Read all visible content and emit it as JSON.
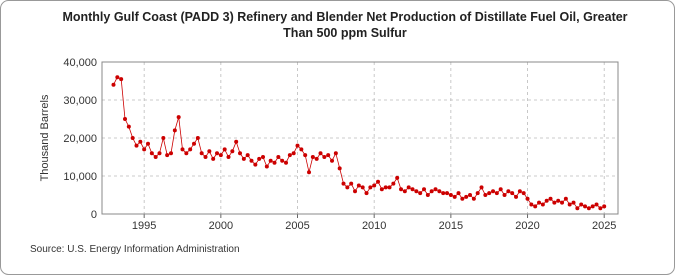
{
  "chart_data": {
    "type": "line",
    "title": "Monthly Gulf Coast (PADD 3) Refinery and Blender Net Production of Distillate Fuel Oil, Greater Than 500 ppm Sulfur",
    "y_label": "Thousand Barrels",
    "source": "Source: U.S. Energy Information Administration",
    "x": [
      1993,
      1993.25,
      1993.5,
      1993.75,
      1994,
      1994.25,
      1994.5,
      1994.75,
      1995,
      1995.25,
      1995.5,
      1995.75,
      1996,
      1996.25,
      1996.5,
      1996.75,
      1997,
      1997.25,
      1997.5,
      1997.75,
      1998,
      1998.25,
      1998.5,
      1998.75,
      1999,
      1999.25,
      1999.5,
      1999.75,
      2000,
      2000.25,
      2000.5,
      2000.75,
      2001,
      2001.25,
      2001.5,
      2001.75,
      2002,
      2002.25,
      2002.5,
      2002.75,
      2003,
      2003.25,
      2003.5,
      2003.75,
      2004,
      2004.25,
      2004.5,
      2004.75,
      2005,
      2005.25,
      2005.5,
      2005.75,
      2006,
      2006.25,
      2006.5,
      2006.75,
      2007,
      2007.25,
      2007.5,
      2007.75,
      2008,
      2008.25,
      2008.5,
      2008.75,
      2009,
      2009.25,
      2009.5,
      2009.75,
      2010,
      2010.25,
      2010.5,
      2010.75,
      2011,
      2011.25,
      2011.5,
      2011.75,
      2012,
      2012.25,
      2012.5,
      2012.75,
      2013,
      2013.25,
      2013.5,
      2013.75,
      2014,
      2014.25,
      2014.5,
      2014.75,
      2015,
      2015.25,
      2015.5,
      2015.75,
      2016,
      2016.25,
      2016.5,
      2016.75,
      2017,
      2017.25,
      2017.5,
      2017.75,
      2018,
      2018.25,
      2018.5,
      2018.75,
      2019,
      2019.25,
      2019.5,
      2019.75,
      2020,
      2020.25,
      2020.5,
      2020.75,
      2021,
      2021.25,
      2021.5,
      2021.75,
      2022,
      2022.25,
      2022.5,
      2022.75,
      2023,
      2023.25,
      2023.5,
      2023.75,
      2024,
      2024.25,
      2024.5,
      2024.75,
      2025
    ],
    "series": [
      {
        "name": "Distillate Fuel Oil, Greater Than 500 ppm Sulfur",
        "color": "#cc0000",
        "values": [
          34000,
          36000,
          35500,
          25000,
          23000,
          20000,
          18000,
          19000,
          17000,
          18500,
          16000,
          15000,
          16000,
          20000,
          15500,
          16000,
          22000,
          25500,
          17000,
          16000,
          17000,
          18500,
          20000,
          16000,
          15000,
          16500,
          14500,
          16000,
          15500,
          17000,
          15000,
          16500,
          19000,
          16000,
          14500,
          15500,
          14000,
          13000,
          14500,
          15000,
          12500,
          14000,
          13500,
          15000,
          14000,
          13500,
          15500,
          16000,
          18000,
          17000,
          15500,
          11000,
          15000,
          14500,
          16000,
          15000,
          15500,
          14000,
          16000,
          12000,
          8000,
          7000,
          8000,
          6000,
          7500,
          7000,
          5500,
          7000,
          7500,
          8500,
          6500,
          7000,
          7000,
          8000,
          9500,
          6500,
          6000,
          7000,
          6500,
          6000,
          5500,
          6500,
          5000,
          6000,
          6500,
          6000,
          5500,
          5500,
          5000,
          4500,
          5500,
          4000,
          4500,
          5000,
          4000,
          5500,
          7000,
          5000,
          5500,
          6000,
          5500,
          6500,
          5000,
          6000,
          5500,
          4500,
          6000,
          5500,
          4000,
          2500,
          2000,
          3000,
          2500,
          3500,
          4000,
          3000,
          3500,
          3000,
          4000,
          2500,
          3000,
          1500,
          2500,
          2000,
          1500,
          2000,
          2500,
          1500,
          2000
        ]
      }
    ],
    "xlim": [
      1992.25,
      2025.9
    ],
    "ylim": [
      0,
      40000
    ],
    "xticks": [
      1995,
      2000,
      2005,
      2010,
      2015,
      2020,
      2025
    ],
    "yticks": [
      0,
      {
        "value": 10000,
        "label": "10,000"
      },
      {
        "value": 20000,
        "label": "20,000"
      },
      {
        "value": 30000,
        "label": "30,000"
      },
      {
        "value": 40000,
        "label": "40,000"
      }
    ],
    "grid": true
  }
}
